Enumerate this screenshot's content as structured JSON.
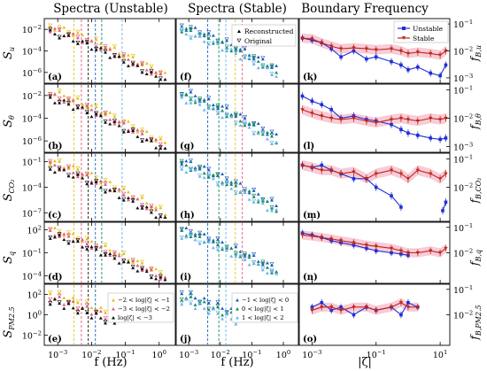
{
  "figure": {
    "col_titles": [
      "Spectra (Unstable)",
      "Spectra (Stable)",
      "Boundary Frequency"
    ],
    "xlabel_left": "f (Hz)",
    "xlabel_mid": "f (Hz)",
    "xlabel_right": "|ζ|",
    "left_ylabels": [
      "S_u",
      "S_θ",
      "S_CO2",
      "S_q",
      "S_PM2.5"
    ],
    "right_ylabels": [
      "f_B,u",
      "f_B,θ",
      "f_B,CO2",
      "f_B,q",
      "f_B,PM2.5"
    ],
    "panel_letters": [
      "(a)",
      "(f)",
      "(k)",
      "(b)",
      "(g)",
      "(l)",
      "(c)",
      "(h)",
      "(m)",
      "(d)",
      "(i)",
      "(n)",
      "(e)",
      "(j)",
      "(o)"
    ],
    "legend_top": [
      "Reconstructed",
      "Original"
    ],
    "legend_right": [
      "Unstable",
      "Stable"
    ],
    "legend_unstable": [
      "−2 < log|ζ| < −1",
      "−3 < log|ζ| < −2",
      "log|ζ| < −3"
    ],
    "legend_stable": [
      "−1 < log|ζ| < 0",
      "0 < log|ζ| < 1",
      "1 < log|ζ| < 2"
    ],
    "colors": {
      "unstable_line": "#1f2fd6",
      "stable_line": "#c0241b",
      "band_pink": "#f4b6c6",
      "class_1": "#e7c21b",
      "class_2": "#e05a8a",
      "class_3": "#111111",
      "class_4": "#1d5fbf",
      "class_5": "#1a8a5c",
      "class_6": "#6bb7e8"
    }
  },
  "chart_data": [
    {
      "type": "scatter",
      "panel": "spectra-unstable",
      "xscale": "log",
      "xlim": [
        0.0004,
        3
      ],
      "xticks": [
        "10^-3",
        "10^-2",
        "10^-1",
        "10^0"
      ],
      "rows": [
        {
          "ylabel": "S_u",
          "yticks": [
            "10^-2",
            "10^-4",
            "10^-6"
          ],
          "ylim_log10": [
            -7,
            -1
          ]
        },
        {
          "ylabel": "S_θ",
          "yticks": [
            "10^-2",
            "10^-4",
            "10^-6"
          ],
          "ylim_log10": [
            -7,
            -1
          ]
        },
        {
          "ylabel": "S_CO2",
          "yticks": [
            "10^-1",
            "10^-4",
            "10^-7"
          ],
          "ylim_log10": [
            -8,
            0
          ]
        },
        {
          "ylabel": "S_q",
          "yticks": [
            "10^2",
            "10^-1",
            "10^-4"
          ],
          "ylim_log10": [
            -5,
            3
          ]
        },
        {
          "ylabel": "S_PM2.5",
          "yticks": [
            "10^2",
            "10^0",
            "10^-2"
          ],
          "ylim_log10": [
            -3,
            3
          ]
        }
      ],
      "series": [
        {
          "name": "−2 < log|ζ| < −1",
          "x": [
            0.0007,
            0.002,
            0.006,
            0.02,
            0.06,
            0.2,
            0.6,
            1.5
          ]
        },
        {
          "name": "−3 < log|ζ| < −2",
          "x": [
            0.0007,
            0.002,
            0.006,
            0.02,
            0.06,
            0.2,
            0.6,
            1.5
          ]
        },
        {
          "name": "log|ζ| < −3",
          "x": [
            0.0007,
            0.002,
            0.006,
            0.02,
            0.06,
            0.2,
            0.6,
            1.5
          ]
        }
      ]
    },
    {
      "type": "scatter",
      "panel": "spectra-stable",
      "xscale": "log",
      "xlim": [
        0.0004,
        3
      ],
      "xticks": [
        "10^-3",
        "10^-2",
        "10^-1",
        "10^0"
      ],
      "series": [
        {
          "name": "−1 < log|ζ| < 0",
          "x": [
            0.0007,
            0.002,
            0.006,
            0.02,
            0.06,
            0.2,
            0.6
          ]
        },
        {
          "name": "0 < log|ζ| < 1",
          "x": [
            0.0007,
            0.002,
            0.006,
            0.02,
            0.06,
            0.2,
            0.6
          ]
        },
        {
          "name": "1 < log|ζ| < 2",
          "x": [
            0.0007,
            0.002,
            0.006,
            0.02,
            0.06,
            0.2,
            0.6
          ]
        }
      ]
    },
    {
      "type": "line",
      "panel": "boundary-frequency",
      "xscale": "log",
      "xlim": [
        0.0004,
        20
      ],
      "xticks": [
        "10^-3",
        "10^-1",
        "10^1"
      ],
      "yscale": "log",
      "rows": [
        {
          "ylabel": "f_B,u",
          "yticks": [
            "10^-1",
            "10^-2",
            "10^-3"
          ],
          "ylim_log10": [
            -3.2,
            -0.8
          ],
          "series": [
            {
              "name": "Unstable",
              "x": [
                0.0005,
                0.001,
                0.002,
                0.004,
                0.008,
                0.02,
                0.05,
                0.1,
                0.3,
                0.6,
                1,
                2,
                5,
                10,
                15
              ],
              "y": [
                0.03,
                0.025,
                0.02,
                0.012,
                0.006,
                0.01,
                0.005,
                0.006,
                0.004,
                0.003,
                0.002,
                0.0025,
                0.0015,
                0.0012,
                0.003
              ]
            },
            {
              "name": "Stable",
              "x": [
                0.0005,
                0.001,
                0.002,
                0.004,
                0.008,
                0.02,
                0.05,
                0.1,
                0.3,
                0.6,
                1,
                2,
                5,
                10,
                15
              ],
              "y": [
                0.03,
                0.028,
                0.02,
                0.015,
                0.012,
                0.013,
                0.012,
                0.011,
                0.012,
                0.01,
                0.008,
                0.009,
                0.008,
                0.007,
                0.01
              ]
            }
          ]
        },
        {
          "ylabel": "f_B,θ",
          "yticks": [
            "10^-1",
            "10^-2",
            "10^-3"
          ],
          "ylim_log10": [
            -3.2,
            -0.8
          ],
          "series": [
            {
              "name": "Unstable",
              "x": [
                0.0005,
                0.001,
                0.002,
                0.004,
                0.008,
                0.02,
                0.05,
                0.1,
                0.3,
                0.6,
                1,
                2,
                5,
                10,
                15
              ],
              "y": [
                0.06,
                0.04,
                0.03,
                0.02,
                0.01,
                0.012,
                0.009,
                0.008,
                0.006,
                0.004,
                0.003,
                0.0025,
                0.002,
                0.0018,
                0.002
              ]
            },
            {
              "name": "Stable",
              "x": [
                0.0005,
                0.001,
                0.002,
                0.004,
                0.008,
                0.02,
                0.05,
                0.1,
                0.3,
                0.6,
                1,
                2,
                5,
                10,
                15
              ],
              "y": [
                0.02,
                0.015,
                0.012,
                0.01,
                0.009,
                0.01,
                0.008,
                0.007,
                0.009,
                0.01,
                0.009,
                0.008,
                0.01,
                0.009,
                0.01
              ]
            }
          ]
        },
        {
          "ylabel": "f_B,CO2",
          "yticks": [
            "10^-1",
            "10^-2"
          ],
          "ylim_log10": [
            -3.2,
            -0.8
          ],
          "series": [
            {
              "name": "Unstable",
              "x": [
                0.0005,
                0.001,
                0.002,
                0.004,
                0.008,
                0.02,
                0.05,
                0.1,
                0.3,
                0.6,
                12,
                15
              ],
              "y": [
                0.06,
                0.05,
                0.06,
                0.04,
                0.03,
                0.02,
                0.02,
                0.01,
                0.005,
                0.002,
                0.0015,
                0.003
              ]
            },
            {
              "name": "Stable",
              "x": [
                0.0005,
                0.001,
                0.002,
                0.004,
                0.008,
                0.02,
                0.05,
                0.1,
                0.3,
                0.6,
                1,
                2,
                5,
                10,
                15
              ],
              "y": [
                0.06,
                0.05,
                0.04,
                0.04,
                0.03,
                0.035,
                0.02,
                0.03,
                0.04,
                0.03,
                0.02,
                0.04,
                0.03,
                0.02,
                0.03
              ]
            }
          ]
        },
        {
          "ylabel": "f_B,q",
          "yticks": [
            "10^-1",
            "10^-2"
          ],
          "ylim_log10": [
            -3.2,
            -0.8
          ],
          "series": [
            {
              "name": "Unstable",
              "x": [
                0.0005,
                0.001,
                0.002,
                0.004,
                0.008,
                0.02,
                0.05,
                0.1,
                0.3,
                0.6,
                1
              ],
              "y": [
                0.06,
                0.05,
                0.04,
                0.03,
                0.025,
                0.02,
                0.015,
                0.012,
                0.01,
                0.009,
                0.008
              ]
            },
            {
              "name": "Stable",
              "x": [
                0.0005,
                0.001,
                0.002,
                0.004,
                0.008,
                0.02,
                0.05,
                0.1,
                0.3,
                0.6,
                1,
                2,
                5,
                10,
                15
              ],
              "y": [
                0.05,
                0.045,
                0.04,
                0.035,
                0.03,
                0.025,
                0.02,
                0.018,
                0.015,
                0.012,
                0.01,
                0.01,
                0.012,
                0.01,
                0.015
              ]
            }
          ]
        },
        {
          "ylabel": "f_B,PM2.5",
          "yticks": [
            "10^-1",
            "10^-2"
          ],
          "ylim_log10": [
            -3.2,
            -0.8
          ],
          "series": [
            {
              "name": "Unstable",
              "x": [
                0.001,
                0.002,
                0.004,
                0.008,
                0.02,
                0.05,
                0.1,
                0.3,
                0.6,
                1,
                2
              ],
              "y": [
                0.02,
                0.03,
                0.015,
                0.02,
                0.01,
                0.02,
                0.015,
                0.02,
                0.01,
                0.03,
                0.02
              ]
            },
            {
              "name": "Stable",
              "x": [
                0.001,
                0.002,
                0.004,
                0.008,
                0.02,
                0.05,
                0.1,
                0.3,
                0.6,
                1,
                2
              ],
              "y": [
                0.015,
                0.02,
                0.02,
                0.015,
                0.02,
                0.02,
                0.015,
                0.02,
                0.03,
                0.02,
                0.02
              ]
            }
          ]
        }
      ]
    }
  ]
}
